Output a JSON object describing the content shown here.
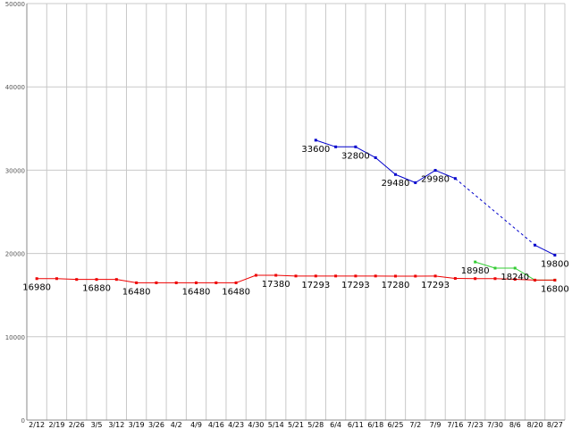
{
  "chart_data": {
    "type": "line",
    "grid": true,
    "legend": "none",
    "ylim": [
      0,
      50000
    ],
    "yticks": [
      0,
      10000,
      20000,
      30000,
      40000,
      50000
    ],
    "categories": [
      "2/12",
      "2/19",
      "2/26",
      "3/5",
      "3/12",
      "3/19",
      "3/26",
      "4/2",
      "4/9",
      "4/16",
      "4/23",
      "4/30",
      "5/14",
      "5/21",
      "5/28",
      "6/4",
      "6/11",
      "6/18",
      "6/25",
      "7/2",
      "7/9",
      "7/16",
      "7/23",
      "7/30",
      "8/6",
      "8/20",
      "8/27"
    ],
    "series": [
      {
        "color": "#0000cc",
        "values": [
          null,
          null,
          null,
          null,
          null,
          null,
          null,
          null,
          null,
          null,
          null,
          null,
          null,
          null,
          33600,
          32800,
          32800,
          31500,
          29480,
          28500,
          29980,
          29000,
          null,
          null,
          null,
          21000,
          19800
        ],
        "dashed_segments": [
          [
            21,
            25
          ]
        ]
      },
      {
        "color": "#33cc33",
        "values": [
          null,
          null,
          null,
          null,
          null,
          null,
          null,
          null,
          null,
          null,
          null,
          null,
          null,
          null,
          null,
          null,
          null,
          null,
          null,
          null,
          null,
          null,
          18980,
          18240,
          18240,
          16800,
          16800
        ]
      },
      {
        "color": "#ee0000",
        "values": [
          16980,
          16980,
          16880,
          16880,
          16880,
          16480,
          16480,
          16480,
          16480,
          16480,
          16480,
          17380,
          17380,
          17293,
          17293,
          17293,
          17293,
          17293,
          17280,
          17280,
          17293,
          17000,
          16980,
          16980,
          16900,
          16800,
          16800
        ]
      }
    ],
    "data_labels": [
      {
        "text": "16980",
        "series": 2,
        "index": 0,
        "pos": "below"
      },
      {
        "text": "16880",
        "series": 2,
        "index": 3,
        "pos": "below"
      },
      {
        "text": "16480",
        "series": 2,
        "index": 5,
        "pos": "below"
      },
      {
        "text": "16480",
        "series": 2,
        "index": 8,
        "pos": "below"
      },
      {
        "text": "16480",
        "series": 2,
        "index": 10,
        "pos": "below"
      },
      {
        "text": "17380",
        "series": 2,
        "index": 12,
        "pos": "below"
      },
      {
        "text": "17293",
        "series": 2,
        "index": 14,
        "pos": "below"
      },
      {
        "text": "17293",
        "series": 2,
        "index": 16,
        "pos": "below"
      },
      {
        "text": "17280",
        "series": 2,
        "index": 18,
        "pos": "below"
      },
      {
        "text": "17293",
        "series": 2,
        "index": 20,
        "pos": "below"
      },
      {
        "text": "16800",
        "series": 2,
        "index": 26,
        "pos": "below"
      },
      {
        "text": "33600",
        "series": 0,
        "index": 14,
        "pos": "below"
      },
      {
        "text": "32800",
        "series": 0,
        "index": 16,
        "pos": "below"
      },
      {
        "text": "29480",
        "series": 0,
        "index": 18,
        "pos": "below"
      },
      {
        "text": "29980",
        "series": 0,
        "index": 20,
        "pos": "below"
      },
      {
        "text": "19800",
        "series": 0,
        "index": 26,
        "pos": "below"
      },
      {
        "text": "18980",
        "series": 1,
        "index": 22,
        "pos": "below"
      },
      {
        "text": "18240",
        "series": 1,
        "index": 24,
        "pos": "below"
      }
    ]
  }
}
